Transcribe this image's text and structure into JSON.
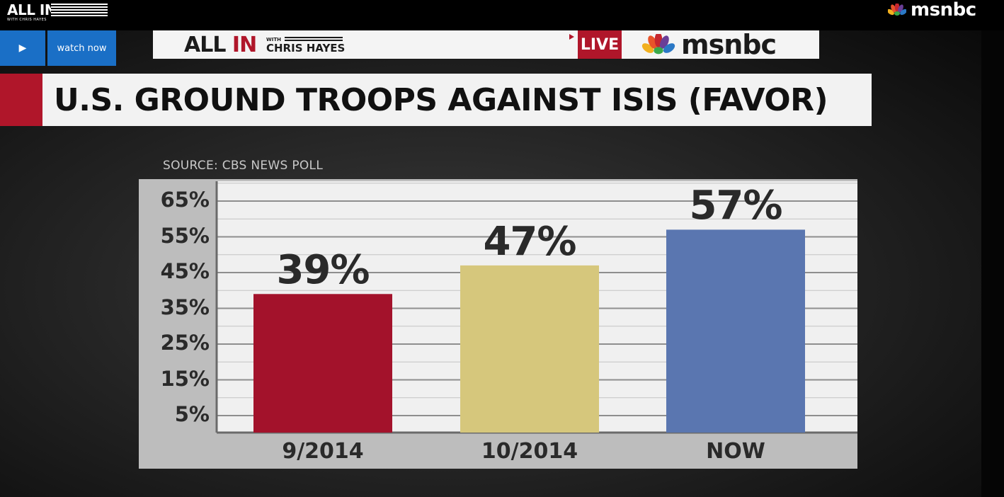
{
  "site": {
    "logo_main": "ALL IN",
    "logo_sub": "WITH CHRIS HAYES",
    "brand": "msnbc"
  },
  "player": {
    "play_icon": "play-icon",
    "watch_now_label": "watch now"
  },
  "broadcast_bug": {
    "show_all": "ALL",
    "show_in": "IN",
    "with": "WITH",
    "host": "CHRIS HAYES",
    "live": "LIVE",
    "network": "msnbc"
  },
  "headline": "U.S. GROUND TROOPS AGAINST ISIS (FAVOR)",
  "source": "SOURCE: CBS NEWS POLL",
  "colors": {
    "accent_red": "#b0162a",
    "player_blue": "#1a6fc6"
  },
  "chart_data": {
    "type": "bar",
    "categories": [
      "9/2014",
      "10/2014",
      "NOW"
    ],
    "values": [
      39,
      47,
      57
    ],
    "data_labels": [
      "39%",
      "47%",
      "57%"
    ],
    "bar_colors": [
      "#a3122b",
      "#d6c77c",
      "#5a76b0"
    ],
    "y_ticks": [
      "65%",
      "55%",
      "45%",
      "35%",
      "25%",
      "15%",
      "5%"
    ],
    "ylim": [
      0,
      70
    ],
    "grid": true,
    "legend": "none"
  }
}
